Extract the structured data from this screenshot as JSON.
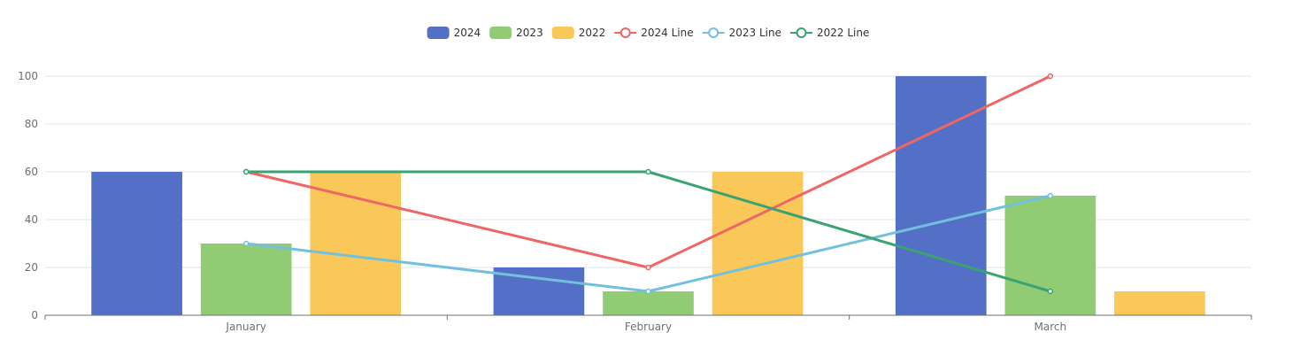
{
  "chart_data": {
    "type": "bar",
    "categories": [
      "January",
      "February",
      "March"
    ],
    "ylim": [
      0,
      100
    ],
    "yticks": [
      0,
      20,
      40,
      60,
      80,
      100
    ],
    "grid": true,
    "legend_position": "top-center",
    "bar_series": [
      {
        "name": "2024",
        "values": [
          60,
          20,
          100
        ],
        "color": "#5470c6"
      },
      {
        "name": "2023",
        "values": [
          30,
          10,
          50
        ],
        "color": "#91cc75"
      },
      {
        "name": "2022",
        "values": [
          60,
          60,
          10
        ],
        "color": "#fac858"
      }
    ],
    "line_series": [
      {
        "name": "2024 Line",
        "values": [
          60,
          20,
          100
        ],
        "color": "#ee6666"
      },
      {
        "name": "2023 Line",
        "values": [
          30,
          10,
          50
        ],
        "color": "#73c0de"
      },
      {
        "name": "2022 Line",
        "values": [
          60,
          60,
          10
        ],
        "color": "#3ba272"
      }
    ]
  }
}
